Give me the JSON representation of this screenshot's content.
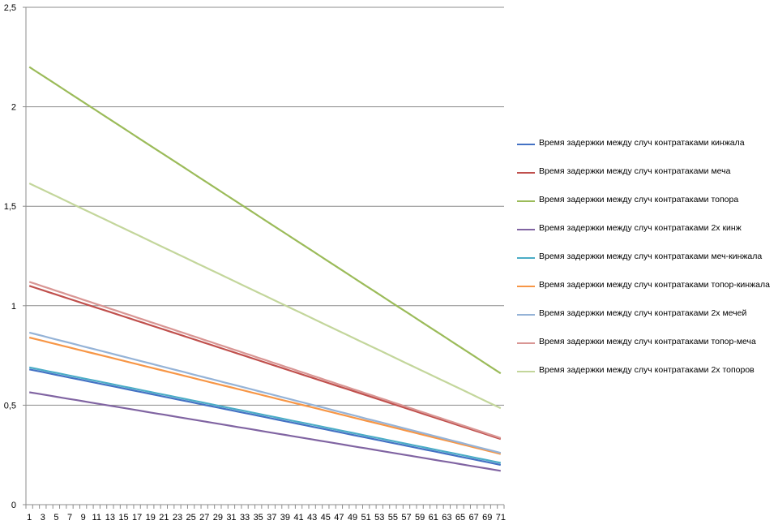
{
  "chart_data": {
    "type": "line",
    "title": "",
    "xlabel": "",
    "ylabel": "",
    "x_range": [
      1,
      71
    ],
    "x_tick_labels": [
      "1",
      "3",
      "5",
      "7",
      "9",
      "11",
      "13",
      "15",
      "17",
      "19",
      "21",
      "23",
      "25",
      "27",
      "29",
      "31",
      "33",
      "35",
      "37",
      "39",
      "41",
      "43",
      "45",
      "47",
      "49",
      "51",
      "53",
      "55",
      "57",
      "59",
      "61",
      "63",
      "65",
      "67",
      "69",
      "71"
    ],
    "y_tick_labels": [
      "0",
      "0,5",
      "1",
      "1,5",
      "2",
      "2,5"
    ],
    "y_ticks": [
      0,
      0.5,
      1,
      1.5,
      2,
      2.5
    ],
    "ylim": [
      0,
      2.5
    ],
    "grid": "horizontal",
    "legend_position": "right",
    "series": [
      {
        "name": "Время задержки между случ контратаками кинжала",
        "color": "#4472C4",
        "start": 0.68,
        "end": 0.2
      },
      {
        "name": "Время задержки между случ контратаками меча",
        "color": "#C0504D",
        "start": 1.1,
        "end": 0.33
      },
      {
        "name": "Время задержки между случ контратаками топора",
        "color": "#9BBB59",
        "start": 2.2,
        "end": 0.66
      },
      {
        "name": "Время задержки между случ контратаками 2х кинж",
        "color": "#8064A2",
        "start": 0.565,
        "end": 0.17
      },
      {
        "name": "Время задержки между случ контратаками меч-кинжала",
        "color": "#4BACC6",
        "start": 0.69,
        "end": 0.21
      },
      {
        "name": "Время задержки между случ контратаками топор-кинжала",
        "color": "#F79646",
        "start": 0.84,
        "end": 0.255
      },
      {
        "name": "Время задержки между случ контратаками 2х мечей",
        "color": "#95B3D7",
        "start": 0.865,
        "end": 0.26
      },
      {
        "name": "Время задержки между случ контратаками топор-меча",
        "color": "#D99694",
        "start": 1.12,
        "end": 0.335
      },
      {
        "name": "Время задержки между случ контратаками 2х топоров",
        "color": "#C3D69B",
        "start": 1.615,
        "end": 0.485
      }
    ]
  }
}
